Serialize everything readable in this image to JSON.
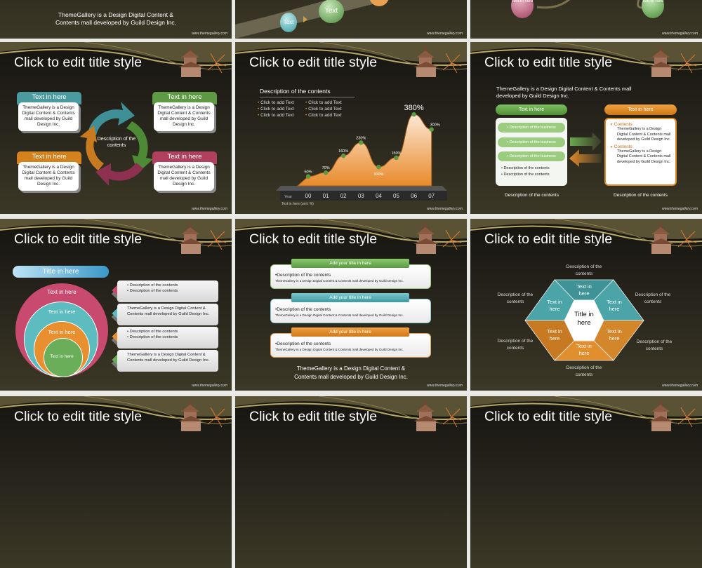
{
  "common": {
    "slide_title": "Click to edit title style",
    "footer": "www.themegallery.com"
  },
  "colors": {
    "teal": "#4ea3a8",
    "green": "#6aa84f",
    "orange": "#e08a2a",
    "pink": "#b8496a",
    "background": "#2b2920",
    "gap": "#e9e9e5"
  },
  "slide1": {
    "text_line1": "ThemeGallery is a Design Digital Content &",
    "text_line2": "Contents mall developed by Guild Design Inc."
  },
  "slide2": {
    "sphere1": "Text",
    "sphere2": "Text"
  },
  "slide3": {
    "sphere_left": "Text in here",
    "sphere_right": "Text in here"
  },
  "slide4": {
    "center": "Description of the contents",
    "boxes": [
      {
        "header": "Text in here",
        "body": "ThemeGallery is a Design Digital Content & Contents mall developed by Guild Design Inc."
      },
      {
        "header": "Text in here",
        "body": "ThemeGallery is a Design Digital Content & Contents mall developed by Guild Design Inc."
      },
      {
        "header": "Text in here",
        "body": "ThemeGallery is a Design Digital Content & Contents mall developed by Guild Design Inc."
      },
      {
        "header": "Text in here",
        "body": "ThemeGallery is a Design Digital Content & Contents mall developed by Guild Design Inc."
      }
    ]
  },
  "slide5": {
    "heading": "Description of the contents",
    "bullets": [
      "Click to add Text",
      "Click to add Text",
      "Click to add Text",
      "Click to add Text",
      "Click to add Text",
      "Click to add Text"
    ],
    "unit_note": "Text in here  (unit: %)",
    "chart_data": {
      "type": "area",
      "xlabel": "Year",
      "categories": [
        "00",
        "01",
        "02",
        "03",
        "04",
        "05",
        "06",
        "07"
      ],
      "values": [
        50,
        70,
        160,
        230,
        100,
        150,
        380,
        300
      ],
      "data_labels": [
        "50%",
        "70%",
        "160%",
        "230%",
        "100%",
        "150%",
        "380%",
        "300%"
      ]
    }
  },
  "slide6": {
    "intro": "ThemeGallery is a Design Digital Content & Contents mall developed by Guild Design Inc.",
    "left_header": "Text in here",
    "right_header": "Text in here",
    "business": [
      "• Description of the business",
      "• Description of the business",
      "• Description of the business"
    ],
    "left_bullets": [
      "• Description of the contents",
      "• Description of the contents"
    ],
    "contents": [
      {
        "title": "Contents",
        "body": "ThemeGallery is a Design Digital Content & Contents mall developed by Guild Design Inc."
      },
      {
        "title": "Contents",
        "body": "ThemeGallery is a Design Digital Content & Contents mall developed by Guild Design Inc."
      }
    ],
    "left_caption": "Description of the contents",
    "right_caption": "Description of the contents"
  },
  "slide7": {
    "title_pill": "Title in here",
    "circles": [
      "Text in here",
      "Text in here",
      "Text in here",
      "Text in here"
    ],
    "rows": [
      {
        "lines": [
          "• Description of the contents",
          "• Description of the contents"
        ]
      },
      {
        "lines": [
          "ThemeGallery is a Design Digital Content & Contents mall developed by Guild Design Inc."
        ]
      },
      {
        "lines": [
          "• Description of the contents",
          "• Description of the contents"
        ]
      },
      {
        "lines": [
          "ThemeGallery is a Design Digital Content & Contents mall developed by Guild Design Inc."
        ]
      }
    ]
  },
  "slide8": {
    "blocks": [
      {
        "header": "Add your title in here",
        "title": "•Description of the contents",
        "body": "ThemeGallery  is a Design Digital Content & Contents mall developed by Guild Design Inc."
      },
      {
        "header": "Add your title in here",
        "title": "•Description of the contents",
        "body": "ThemeGallery  is a Design Digital Content & Contents mall developed by Guild Design Inc."
      },
      {
        "header": "Add your title in here",
        "title": "•Description of the contents",
        "body": "ThemeGallery  is a Design Digital Content & Contents mall developed by Guild Design Inc."
      }
    ],
    "bottom_line1": "ThemeGallery  is a Design Digital Content &",
    "bottom_line2": "Contents mall developed by Guild Design Inc."
  },
  "slide9": {
    "center": "Title in here",
    "segments": [
      "Text in here",
      "Text in here",
      "Text in here",
      "Text in here",
      "Text in here",
      "Text in here"
    ],
    "descriptions": [
      "Description of the contents",
      "Description of the contents",
      "Description of the contents",
      "Description of the contents",
      "Description of the contents",
      "Description of the contents"
    ]
  }
}
